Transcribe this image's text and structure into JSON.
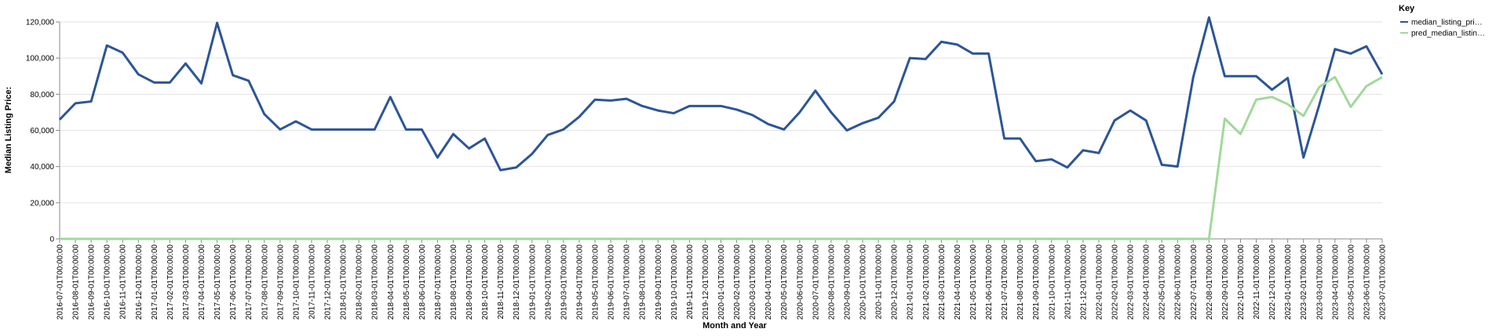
{
  "chart_data": {
    "type": "line",
    "x_label": "Month and Year",
    "y_label": "Median Listing Price:",
    "legend_title": "Key",
    "legend_position": "top-right",
    "grid": true,
    "categories": [
      "2016-07-01T00:00:00",
      "2016-08-01T00:00:00",
      "2016-09-01T00:00:00",
      "2016-10-01T00:00:00",
      "2016-11-01T00:00:00",
      "2016-12-01T00:00:00",
      "2017-01-01T00:00:00",
      "2017-02-01T00:00:00",
      "2017-03-01T00:00:00",
      "2017-04-01T00:00:00",
      "2017-05-01T00:00:00",
      "2017-06-01T00:00:00",
      "2017-07-01T00:00:00",
      "2017-08-01T00:00:00",
      "2017-09-01T00:00:00",
      "2017-10-01T00:00:00",
      "2017-11-01T00:00:00",
      "2017-12-01T00:00:00",
      "2018-01-01T00:00:00",
      "2018-02-01T00:00:00",
      "2018-03-01T00:00:00",
      "2018-04-01T00:00:00",
      "2018-05-01T00:00:00",
      "2018-06-01T00:00:00",
      "2018-07-01T00:00:00",
      "2018-08-01T00:00:00",
      "2018-09-01T00:00:00",
      "2018-10-01T00:00:00",
      "2018-11-01T00:00:00",
      "2018-12-01T00:00:00",
      "2019-01-01T00:00:00",
      "2019-02-01T00:00:00",
      "2019-03-01T00:00:00",
      "2019-04-01T00:00:00",
      "2019-05-01T00:00:00",
      "2019-06-01T00:00:00",
      "2019-07-01T00:00:00",
      "2019-08-01T00:00:00",
      "2019-09-01T00:00:00",
      "2019-10-01T00:00:00",
      "2019-11-01T00:00:00",
      "2019-12-01T00:00:00",
      "2020-01-01T00:00:00",
      "2020-02-01T00:00:00",
      "2020-03-01T00:00:00",
      "2020-04-01T00:00:00",
      "2020-05-01T00:00:00",
      "2020-06-01T00:00:00",
      "2020-07-01T00:00:00",
      "2020-08-01T00:00:00",
      "2020-09-01T00:00:00",
      "2020-10-01T00:00:00",
      "2020-11-01T00:00:00",
      "2020-12-01T00:00:00",
      "2021-01-01T00:00:00",
      "2021-02-01T00:00:00",
      "2021-03-01T00:00:00",
      "2021-04-01T00:00:00",
      "2021-05-01T00:00:00",
      "2021-06-01T00:00:00",
      "2021-07-01T00:00:00",
      "2021-08-01T00:00:00",
      "2021-09-01T00:00:00",
      "2021-10-01T00:00:00",
      "2021-11-01T00:00:00",
      "2021-12-01T00:00:00",
      "2022-01-01T00:00:00",
      "2022-02-01T00:00:00",
      "2022-03-01T00:00:00",
      "2022-04-01T00:00:00",
      "2022-05-01T00:00:00",
      "2022-06-01T00:00:00",
      "2022-07-01T00:00:00",
      "2022-08-01T00:00:00",
      "2022-09-01T00:00:00",
      "2022-10-01T00:00:00",
      "2022-11-01T00:00:00",
      "2022-12-01T00:00:00",
      "2023-01-01T00:00:00",
      "2023-02-01T00:00:00",
      "2023-03-01T00:00:00",
      "2023-04-01T00:00:00",
      "2023-05-01T00:00:00",
      "2023-06-01T00:00:00",
      "2023-07-01T00:00:00"
    ],
    "series": [
      {
        "name": "median_listing_pri…",
        "color": "#2c5597",
        "values": [
          66000,
          75000,
          76000,
          107000,
          103000,
          91000,
          86500,
          86500,
          97000,
          86000,
          119500,
          90500,
          87500,
          69000,
          60500,
          65000,
          60500,
          60500,
          60500,
          60500,
          60500,
          78500,
          60500,
          60500,
          45000,
          58000,
          50000,
          55500,
          38000,
          39500,
          47000,
          57500,
          60500,
          67500,
          77000,
          76500,
          77500,
          73500,
          71000,
          69500,
          73500,
          73500,
          73500,
          71500,
          68500,
          63500,
          60500,
          70000,
          82000,
          70000,
          60000,
          64000,
          67000,
          76000,
          100000,
          99500,
          109000,
          107500,
          102500,
          102500,
          55500,
          55500,
          43000,
          44000,
          39500,
          49000,
          47500,
          65500,
          71000,
          65500,
          41000,
          40000,
          89500,
          122500,
          90000,
          90000,
          90000,
          82500,
          89000,
          45000,
          74000,
          105000,
          102500,
          106500,
          91000
        ]
      },
      {
        "name": "pred_median_listin…",
        "color": "#a1d99b",
        "values": [
          0,
          0,
          0,
          0,
          0,
          0,
          0,
          0,
          0,
          0,
          0,
          0,
          0,
          0,
          0,
          0,
          0,
          0,
          0,
          0,
          0,
          0,
          0,
          0,
          0,
          0,
          0,
          0,
          0,
          0,
          0,
          0,
          0,
          0,
          0,
          0,
          0,
          0,
          0,
          0,
          0,
          0,
          0,
          0,
          0,
          0,
          0,
          0,
          0,
          0,
          0,
          0,
          0,
          0,
          0,
          0,
          0,
          0,
          0,
          0,
          0,
          0,
          0,
          0,
          0,
          0,
          0,
          0,
          0,
          0,
          0,
          0,
          0,
          0,
          66500,
          58000,
          77000,
          78500,
          74500,
          68000,
          84000,
          89500,
          73000,
          84500,
          89500
        ]
      }
    ],
    "ylim": [
      0,
      120000
    ],
    "yticks": [
      0,
      {
        "value": 20000,
        "label": "20,000"
      },
      {
        "value": 40000,
        "label": "40,000"
      },
      {
        "value": 60000,
        "label": "60,000"
      },
      {
        "value": 80000,
        "label": "80,000"
      },
      {
        "value": 100000,
        "label": "100,000"
      },
      {
        "value": 120000,
        "label": "120,000"
      }
    ]
  }
}
